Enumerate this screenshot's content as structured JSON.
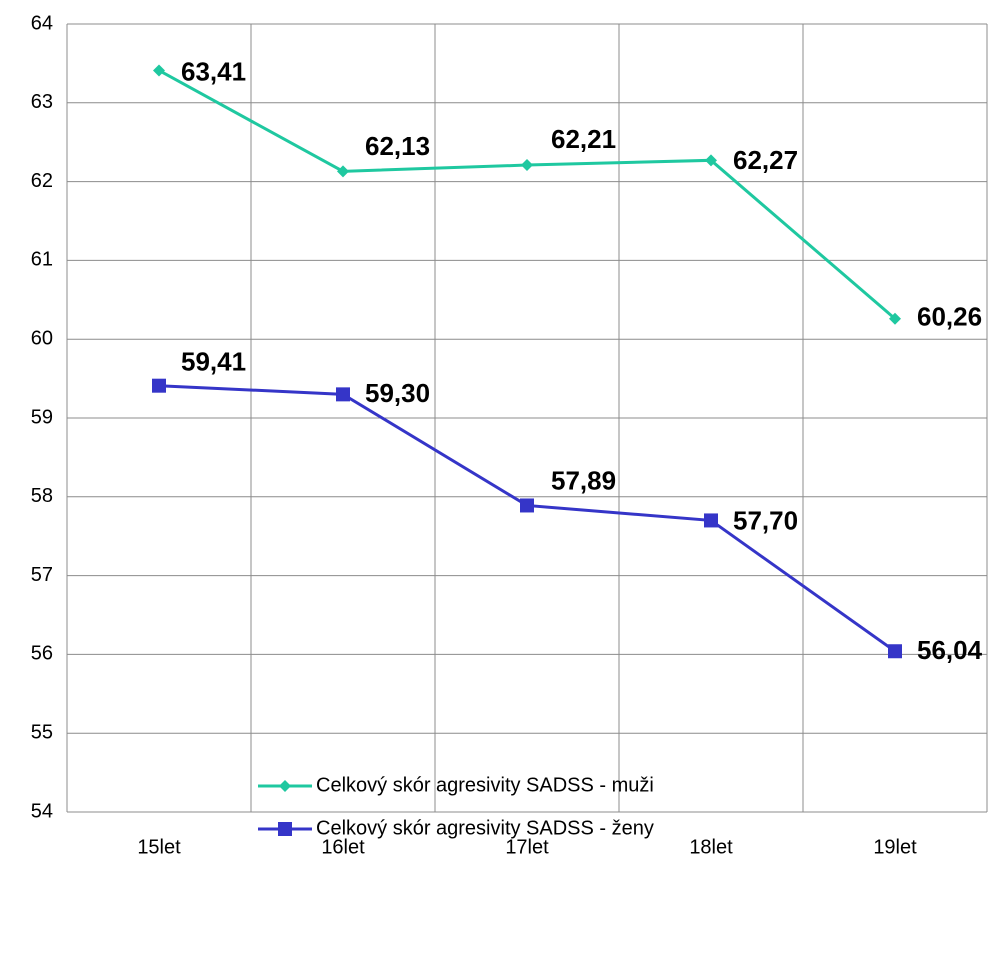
{
  "chart_data": {
    "type": "line",
    "categories": [
      "15let",
      "16let",
      "17let",
      "18let",
      "19let"
    ],
    "series": [
      {
        "name": "Celkový skór agresivity SADSS - muži",
        "color": "#1fc8a0",
        "marker": "diamond",
        "values": [
          63.41,
          62.13,
          62.21,
          62.27,
          60.26
        ],
        "value_labels": [
          "63,41",
          "62,13",
          "62,21",
          "62,27",
          "60,26"
        ]
      },
      {
        "name": "Celkový skór agresivity SADSS - ženy",
        "color": "#3535c8",
        "marker": "square",
        "values": [
          59.41,
          59.3,
          57.89,
          57.7,
          56.04
        ],
        "value_labels": [
          "59,41",
          "59,30",
          "57,89",
          "57,70",
          "56,04"
        ]
      }
    ],
    "ylim": [
      54,
      64
    ],
    "yticks": [
      54,
      55,
      56,
      57,
      58,
      59,
      60,
      61,
      62,
      63,
      64
    ],
    "grid": true,
    "legend": "bottom"
  }
}
